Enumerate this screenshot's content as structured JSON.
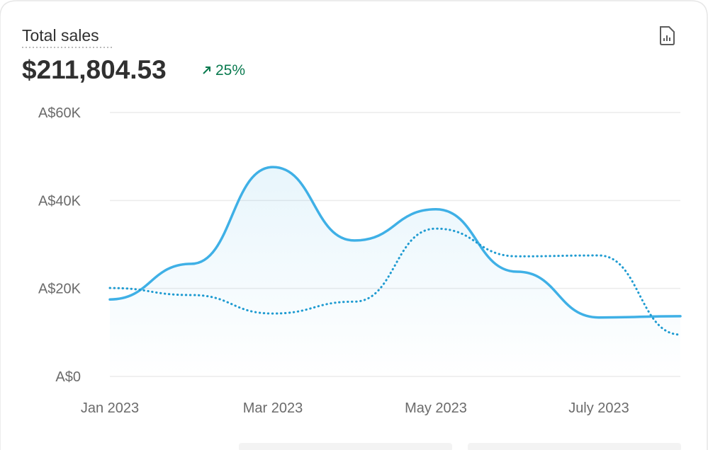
{
  "header": {
    "title": "Total sales",
    "total": "$211,804.53",
    "change": "25%"
  },
  "chart_data": {
    "type": "line",
    "categories": [
      "Jan 2023",
      null,
      "Mar 2023",
      null,
      "May 2023",
      null,
      "July 2023",
      null
    ],
    "series": [
      {
        "color": "#3fb0e6",
        "style": "solid",
        "area": true,
        "values": [
          17500,
          25600,
          47600,
          30900,
          38000,
          23800,
          13400,
          13700
        ]
      },
      {
        "color": "#1f9bd1",
        "style": "dotted",
        "values": [
          20100,
          18500,
          14300,
          17000,
          33600,
          27300,
          27500,
          9500
        ]
      }
    ],
    "ylim": [
      0,
      60000
    ],
    "yticks": [
      {
        "value": 0,
        "label": "A$0"
      },
      {
        "value": 20000,
        "label": "A$20K"
      },
      {
        "value": 40000,
        "label": "A$40K"
      },
      {
        "value": 60000,
        "label": "A$60K"
      }
    ],
    "grid": true
  }
}
